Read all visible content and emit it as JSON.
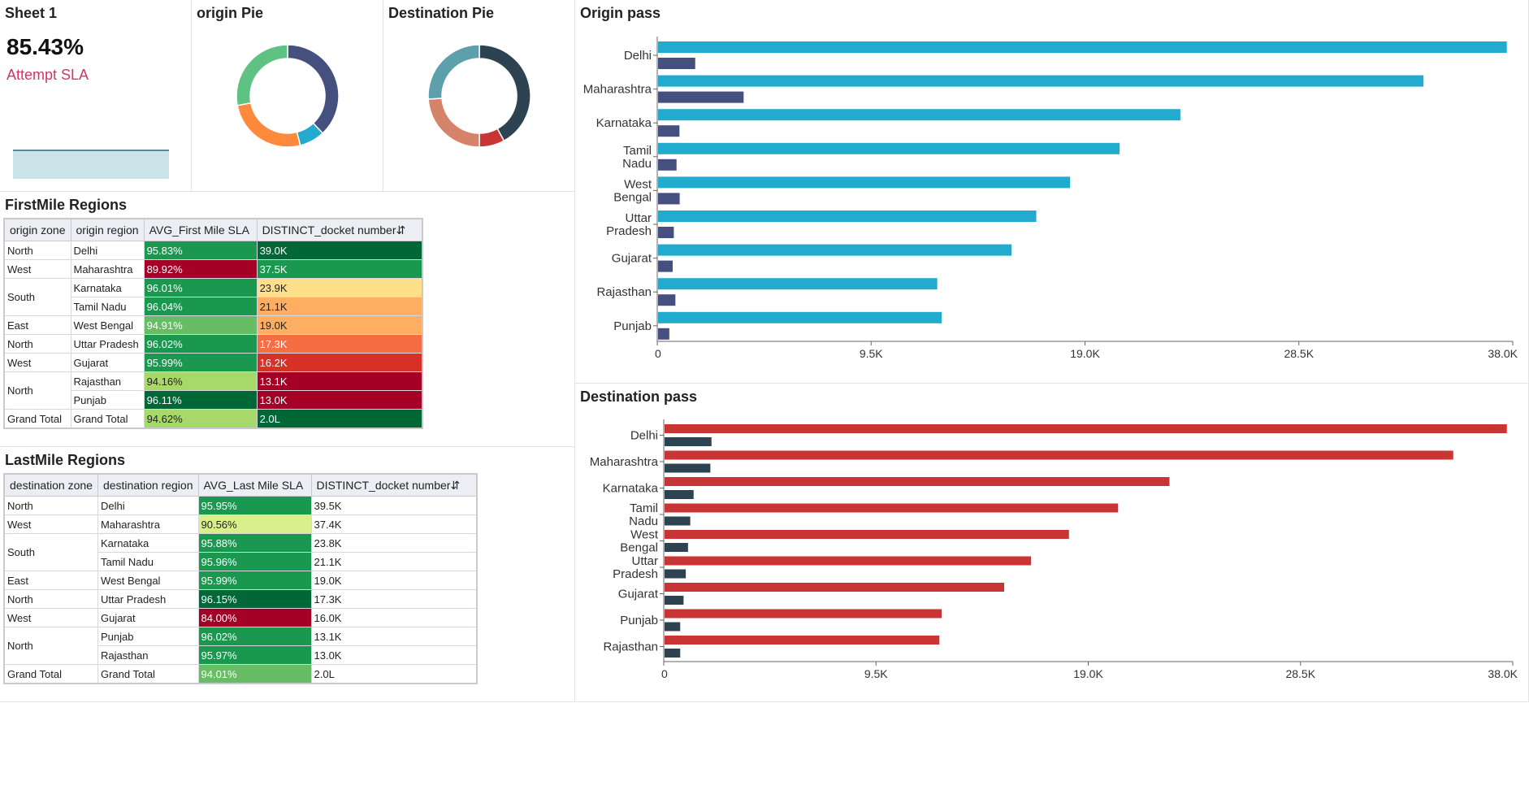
{
  "sheet1": {
    "title": "Sheet 1",
    "value": "85.43%",
    "label": "Attempt SLA"
  },
  "origin_pie": {
    "title": "origin Pie",
    "chart_data": {
      "type": "pie",
      "title": "origin Pie",
      "slices": [
        {
          "value": 38,
          "color": "#46507e"
        },
        {
          "value": 8,
          "color": "#22aacf"
        },
        {
          "value": 26,
          "color": "#fd8a3c"
        },
        {
          "value": 28,
          "color": "#5ec283"
        }
      ]
    }
  },
  "destination_pie": {
    "title": "Destination Pie",
    "chart_data": {
      "type": "pie",
      "title": "Destination Pie",
      "slices": [
        {
          "value": 42,
          "color": "#2e4352"
        },
        {
          "value": 8,
          "color": "#c93535"
        },
        {
          "value": 24,
          "color": "#d5836a"
        },
        {
          "value": 26,
          "color": "#5d9fab"
        }
      ]
    }
  },
  "firstmile": {
    "title": "FirstMile Regions",
    "columns": [
      "origin zone",
      "origin region",
      "AVG_First Mile SLA",
      "DISTINCT_docket number⇵"
    ],
    "rows": [
      {
        "zone": "North",
        "region": "Delhi",
        "sla": "95.83%",
        "sla_bg": "#1a9850",
        "cnt": "39.0K",
        "cnt_bg": "#006837",
        "sla_dark": false,
        "cnt_dark": false
      },
      {
        "zone": "West",
        "region": "Maharashtra",
        "sla": "89.92%",
        "sla_bg": "#a50026",
        "cnt": "37.5K",
        "cnt_bg": "#1a9850",
        "sla_dark": false,
        "cnt_dark": false
      },
      {
        "zone": "South",
        "region": "Karnataka",
        "sla": "96.01%",
        "sla_bg": "#1a9850",
        "cnt": "23.9K",
        "cnt_bg": "#fee08b",
        "sla_dark": false,
        "cnt_dark": true
      },
      {
        "zone": "",
        "region": "Tamil Nadu",
        "sla": "96.04%",
        "sla_bg": "#1a9850",
        "cnt": "21.1K",
        "cnt_bg": "#fdae61",
        "sla_dark": false,
        "cnt_dark": true
      },
      {
        "zone": "East",
        "region": "West Bengal",
        "sla": "94.91%",
        "sla_bg": "#66bd63",
        "cnt": "19.0K",
        "cnt_bg": "#fdae61",
        "sla_dark": false,
        "cnt_dark": true
      },
      {
        "zone": "North",
        "region": "Uttar Pradesh",
        "sla": "96.02%",
        "sla_bg": "#1a9850",
        "cnt": "17.3K",
        "cnt_bg": "#f46d43",
        "sla_dark": false,
        "cnt_dark": false
      },
      {
        "zone": "West",
        "region": "Gujarat",
        "sla": "95.99%",
        "sla_bg": "#1a9850",
        "cnt": "16.2K",
        "cnt_bg": "#d73027",
        "sla_dark": false,
        "cnt_dark": false
      },
      {
        "zone": "North",
        "region": "Rajasthan",
        "sla": "94.16%",
        "sla_bg": "#a6d96a",
        "cnt": "13.1K",
        "cnt_bg": "#a50026",
        "sla_dark": true,
        "cnt_dark": false
      },
      {
        "zone": "",
        "region": "Punjab",
        "sla": "96.11%",
        "sla_bg": "#006837",
        "cnt": "13.0K",
        "cnt_bg": "#a50026",
        "sla_dark": false,
        "cnt_dark": false
      },
      {
        "zone": "Grand Total",
        "region": "Grand Total",
        "sla": "94.62%",
        "sla_bg": "#a6d96a",
        "cnt": "2.0L",
        "cnt_bg": "#006837",
        "sla_dark": true,
        "cnt_dark": false
      }
    ]
  },
  "lastmile": {
    "title": "LastMile Regions",
    "columns": [
      "destination zone",
      "destination region",
      "AVG_Last Mile SLA",
      "DISTINCT_docket number⇵"
    ],
    "rows": [
      {
        "zone": "North",
        "region": "Delhi",
        "sla": "95.95%",
        "sla_bg": "#1a9850",
        "cnt": "39.5K",
        "sla_dark": false
      },
      {
        "zone": "West",
        "region": "Maharashtra",
        "sla": "90.56%",
        "sla_bg": "#d9ef8b",
        "cnt": "37.4K",
        "sla_dark": true
      },
      {
        "zone": "South",
        "region": "Karnataka",
        "sla": "95.88%",
        "sla_bg": "#1a9850",
        "cnt": "23.8K",
        "sla_dark": false
      },
      {
        "zone": "",
        "region": "Tamil Nadu",
        "sla": "95.96%",
        "sla_bg": "#1a9850",
        "cnt": "21.1K",
        "sla_dark": false
      },
      {
        "zone": "East",
        "region": "West Bengal",
        "sla": "95.99%",
        "sla_bg": "#1a9850",
        "cnt": "19.0K",
        "sla_dark": false
      },
      {
        "zone": "North",
        "region": "Uttar Pradesh",
        "sla": "96.15%",
        "sla_bg": "#006837",
        "cnt": "17.3K",
        "sla_dark": false
      },
      {
        "zone": "West",
        "region": "Gujarat",
        "sla": "84.00%",
        "sla_bg": "#a50026",
        "cnt": "16.0K",
        "sla_dark": false
      },
      {
        "zone": "North",
        "region": "Punjab",
        "sla": "96.02%",
        "sla_bg": "#1a9850",
        "cnt": "13.1K",
        "sla_dark": false
      },
      {
        "zone": "",
        "region": "Rajasthan",
        "sla": "95.97%",
        "sla_bg": "#1a9850",
        "cnt": "13.0K",
        "sla_dark": false
      },
      {
        "zone": "Grand Total",
        "region": "Grand Total",
        "sla": "94.01%",
        "sla_bg": "#66bd63",
        "cnt": "2.0L",
        "sla_dark": false
      }
    ]
  },
  "origin_pass": {
    "title": "Origin pass",
    "chart_data": {
      "type": "bar",
      "orientation": "horizontal",
      "title": "Origin pass",
      "categories": [
        [
          "Delhi"
        ],
        [
          "Maharashtra"
        ],
        [
          "Karnataka"
        ],
        [
          "Tamil",
          "Nadu"
        ],
        [
          "West",
          "Bengal"
        ],
        [
          "Uttar",
          "Pradesh"
        ],
        [
          "Gujarat"
        ],
        [
          "Rajasthan"
        ],
        [
          "Punjab"
        ]
      ],
      "series": [
        {
          "name": "pass",
          "color": "#22aacf",
          "values": [
            37700,
            34000,
            23200,
            20500,
            18300,
            16800,
            15700,
            12400,
            12600
          ]
        },
        {
          "name": "fail",
          "color": "#46507e",
          "values": [
            1650,
            3800,
            950,
            820,
            960,
            700,
            650,
            770,
            500
          ]
        }
      ],
      "xlim": [
        0,
        38000
      ],
      "ticks": [
        0,
        9500,
        19000,
        28500,
        38000
      ],
      "tick_labels": [
        "0",
        "9.5K",
        "19.0K",
        "28.5K",
        "38.0K"
      ]
    }
  },
  "destination_pass": {
    "title": "Destination pass",
    "chart_data": {
      "type": "bar",
      "orientation": "horizontal",
      "title": "Destination pass",
      "categories": [
        [
          "Delhi"
        ],
        [
          "Maharashtra"
        ],
        [
          "Karnataka"
        ],
        [
          "Tamil",
          "Nadu"
        ],
        [
          "West",
          "Bengal"
        ],
        [
          "Uttar",
          "Pradesh"
        ],
        [
          "Gujarat"
        ],
        [
          "Punjab"
        ],
        [
          "Rajasthan"
        ]
      ],
      "series": [
        {
          "name": "pass",
          "color": "#c93535",
          "values": [
            37700,
            35300,
            22600,
            20300,
            18100,
            16400,
            15200,
            12400,
            12300
          ]
        },
        {
          "name": "fail",
          "color": "#2e4352",
          "values": [
            2100,
            2050,
            1300,
            1150,
            1050,
            950,
            850,
            700,
            700
          ]
        }
      ],
      "xlim": [
        0,
        38000
      ],
      "ticks": [
        0,
        9500,
        19000,
        28500,
        38000
      ],
      "tick_labels": [
        "0",
        "9.5K",
        "19.0K",
        "28.5K",
        "38.0K"
      ]
    }
  }
}
